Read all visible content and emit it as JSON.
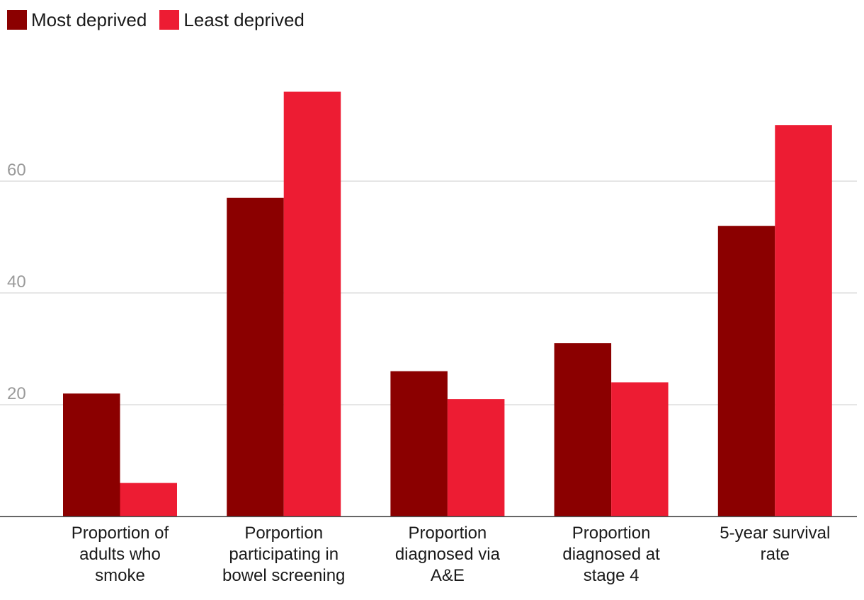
{
  "chart_data": {
    "type": "bar",
    "title": "",
    "xlabel": "",
    "ylabel": "",
    "categories": [
      [
        "Proportion of",
        "adults who",
        "smoke"
      ],
      [
        "Porportion",
        "participating in",
        "bowel screening"
      ],
      [
        "Proportion",
        "diagnosed via",
        "A&E"
      ],
      [
        "Proportion",
        "diagnosed at",
        "stage 4"
      ],
      [
        "5-year survival",
        "rate"
      ]
    ],
    "series": [
      {
        "name": "Most deprived",
        "color": "#8b0000",
        "values": [
          22,
          57,
          26,
          31,
          52
        ]
      },
      {
        "name": "Least deprived",
        "color": "#ed1c33",
        "values": [
          6,
          76,
          21,
          24,
          70
        ]
      }
    ],
    "ylim": [
      0,
      80
    ],
    "yticks": [
      20,
      40,
      60
    ],
    "grid": true,
    "legend_position": "top-left"
  }
}
